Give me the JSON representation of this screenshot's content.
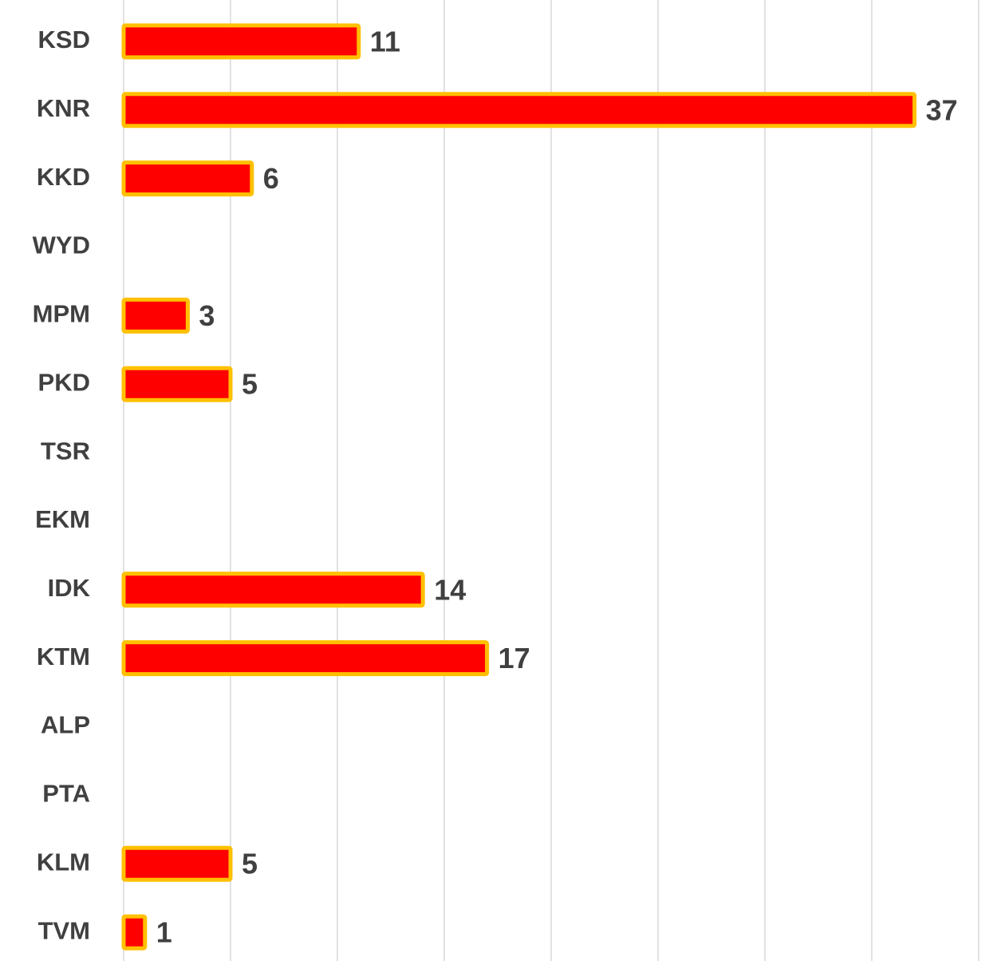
{
  "chart_data": {
    "type": "bar",
    "orientation": "horizontal",
    "categories": [
      "KSD",
      "KNR",
      "KKD",
      "WYD",
      "MPM",
      "PKD",
      "TSR",
      "EKM",
      "IDK",
      "KTM",
      "ALP",
      "PTA",
      "KLM",
      "TVM"
    ],
    "values": [
      11,
      37,
      6,
      null,
      3,
      5,
      null,
      null,
      14,
      17,
      null,
      null,
      5,
      1
    ],
    "color": "#ff0000",
    "edge_color": "#ffc000",
    "xlim": [
      0,
      40
    ],
    "xticks": [
      0,
      5,
      10,
      15,
      20,
      25,
      30,
      35,
      40
    ],
    "grid": true
  }
}
